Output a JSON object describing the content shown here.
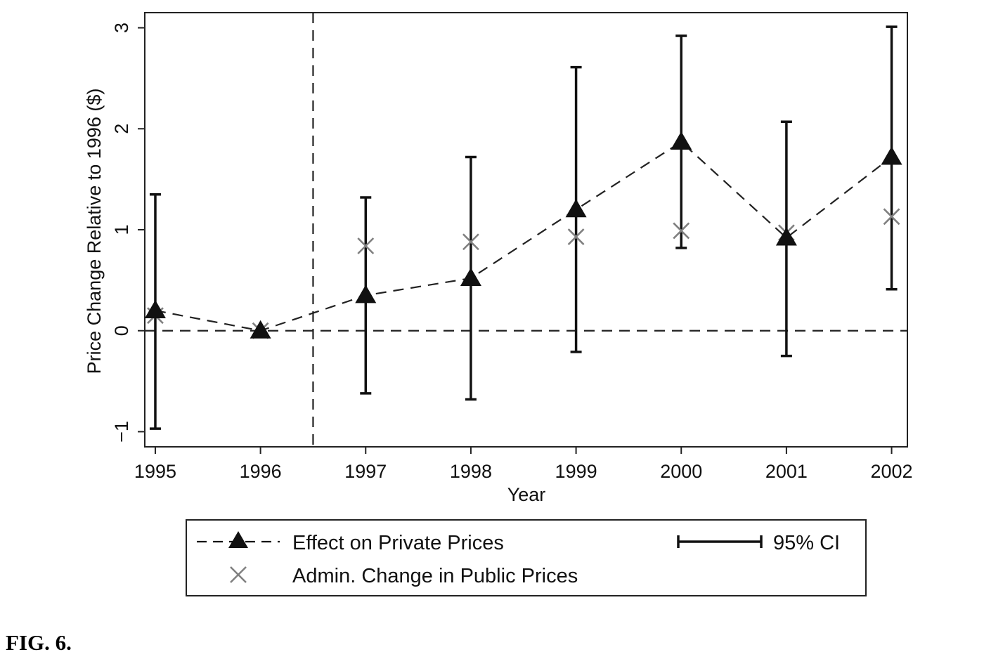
{
  "chart_data": {
    "type": "line",
    "title": "",
    "xlabel": "Year",
    "ylabel": "Price Change Relative to 1996 ($)",
    "x": [
      1995,
      1996,
      1997,
      1998,
      1999,
      2000,
      2001,
      2002
    ],
    "x_tick_labels": [
      "1995",
      "1996",
      "1997",
      "1998",
      "1999",
      "2000",
      "2001",
      "2002"
    ],
    "y_ticks": [
      -1,
      0,
      1,
      2,
      3
    ],
    "y_tick_labels": [
      "−1",
      "0",
      "1",
      "2",
      "3"
    ],
    "xlim": [
      1994.9,
      2002.15
    ],
    "ylim": [
      -1.15,
      3.15
    ],
    "grid": false,
    "reference_lines": {
      "horizontal_y": 0,
      "vertical_x": 1996.5
    },
    "legend_position": "bottom",
    "series": [
      {
        "name": "Effect on Private Prices",
        "marker": "triangle",
        "line_style": "dashed",
        "color": "#111111",
        "values": [
          0.2,
          0.0,
          0.35,
          0.52,
          1.2,
          1.87,
          0.92,
          1.72
        ],
        "ci_low": [
          -0.97,
          0.0,
          -0.62,
          -0.68,
          -0.21,
          0.82,
          -0.25,
          0.41
        ],
        "ci_high": [
          1.35,
          0.0,
          1.32,
          1.72,
          2.61,
          2.92,
          2.07,
          3.01
        ]
      },
      {
        "name": "Admin. Change in Public Prices",
        "marker": "x",
        "line_style": "none",
        "color": "#808080",
        "values": [
          0.15,
          0.0,
          0.84,
          0.88,
          0.93,
          0.99,
          0.97,
          1.13
        ]
      }
    ],
    "legend": {
      "entries": [
        {
          "label": "Effect on Private Prices"
        },
        {
          "label": "Admin. Change in Public Prices"
        },
        {
          "label": "95% CI"
        }
      ]
    }
  },
  "caption": "FIG. 6."
}
